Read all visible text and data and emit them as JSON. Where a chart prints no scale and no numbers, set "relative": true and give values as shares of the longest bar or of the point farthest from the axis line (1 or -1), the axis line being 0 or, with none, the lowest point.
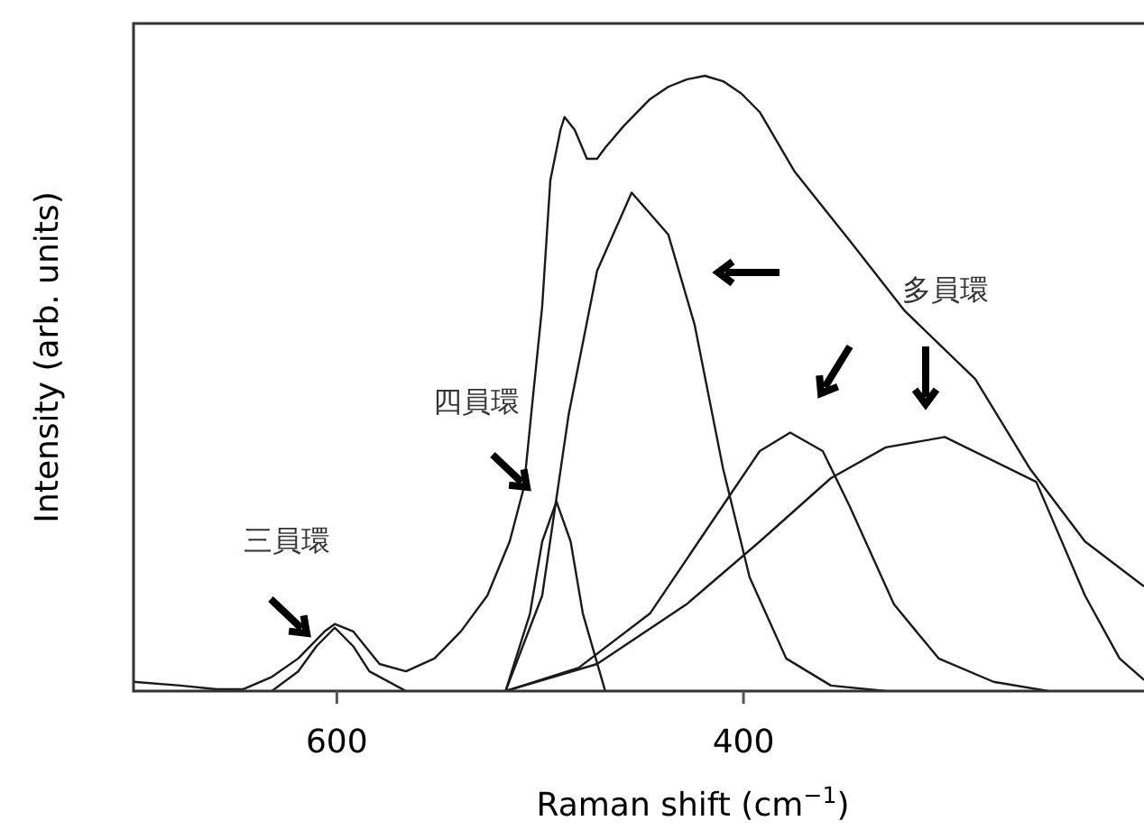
{
  "chart_data": {
    "type": "line",
    "relative": true,
    "xlabel": "Raman shift (cm$^{−1}$)",
    "ylabel": "Intensity (arb. units)",
    "xlim": [
      700,
      203
    ],
    "xticks": [
      600,
      400
    ],
    "grid": false,
    "line_style": "solid",
    "annotations": [
      "三員環",
      "四員環",
      "多員環"
    ],
    "series": [
      {
        "color": "#1a1a1a",
        "x": [
          700,
          677,
          659,
          646,
          632,
          619,
          606,
          601,
          592,
          579,
          566,
          552,
          539,
          526,
          515,
          508,
          504,
          499,
          495,
          490,
          488,
          483,
          477,
          472,
          468,
          459,
          446,
          437,
          428,
          419,
          410,
          401,
          392,
          375,
          348,
          321,
          286,
          259,
          232,
          203
        ],
        "values": [
          0.015,
          0.009,
          0.003,
          0.003,
          0.023,
          0.053,
          0.097,
          0.109,
          0.097,
          0.044,
          0.032,
          0.053,
          0.097,
          0.155,
          0.243,
          0.331,
          0.463,
          0.625,
          0.83,
          0.912,
          0.933,
          0.912,
          0.865,
          0.865,
          0.883,
          0.918,
          0.962,
          0.982,
          0.994,
          1.0,
          0.991,
          0.971,
          0.941,
          0.845,
          0.733,
          0.619,
          0.507,
          0.361,
          0.243,
          0.17
        ]
      },
      {
        "color": "#1a1a1a",
        "x": [
          632,
          619,
          610,
          601,
          592,
          584,
          566
        ],
        "values": [
          0,
          0.032,
          0.073,
          0.103,
          0.073,
          0.032,
          0
        ]
      },
      {
        "color": "#1a1a1a",
        "x": [
          517,
          505,
          499,
          492,
          485,
          479,
          468
        ],
        "values": [
          0,
          0.126,
          0.243,
          0.308,
          0.243,
          0.126,
          0
        ]
      },
      {
        "color": "#1a1a1a",
        "x": [
          517,
          499,
          486,
          472,
          455,
          437,
          424,
          410,
          397,
          379,
          357,
          330
        ],
        "values": [
          0,
          0.155,
          0.449,
          0.683,
          0.81,
          0.742,
          0.595,
          0.361,
          0.185,
          0.053,
          0.009,
          0
        ]
      },
      {
        "color": "#1a1a1a",
        "x": [
          517,
          481,
          446,
          410,
          392,
          377,
          361,
          348,
          326,
          304,
          277,
          250
        ],
        "values": [
          0,
          0.038,
          0.126,
          0.302,
          0.39,
          0.42,
          0.39,
          0.302,
          0.141,
          0.053,
          0.015,
          0
        ]
      },
      {
        "color": "#1a1a1a",
        "x": [
          517,
          472,
          428,
          392,
          357,
          330,
          301,
          256,
          232,
          215,
          203
        ],
        "values": [
          0,
          0.044,
          0.141,
          0.243,
          0.346,
          0.396,
          0.413,
          0.34,
          0.155,
          0.053,
          0.018
        ]
      }
    ]
  }
}
